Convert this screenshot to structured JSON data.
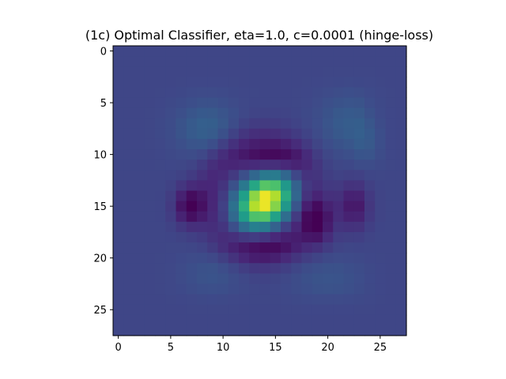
{
  "chart_data": {
    "type": "heatmap",
    "title": "(1c) Optimal Classifier, eta=1.0, c=0.0001 (hinge-loss)",
    "colormap": "viridis",
    "rows": 28,
    "cols": 28,
    "x_ticks": [
      0,
      5,
      10,
      15,
      20,
      25
    ],
    "y_ticks": [
      0,
      5,
      10,
      15,
      20,
      25
    ],
    "x_tick_labels": [
      "0",
      "5",
      "10",
      "15",
      "20",
      "25"
    ],
    "y_tick_labels": [
      "0",
      "5",
      "10",
      "15",
      "20",
      "25"
    ],
    "xlim": [
      -0.5,
      27.5
    ],
    "ylim": [
      27.5,
      -0.5
    ],
    "background_value": 0.21,
    "components": [
      {
        "kind": "positive-blob",
        "center": [
          14.5,
          14.0
        ],
        "sigma": [
          1.5,
          2.0
        ],
        "rotation_deg": -40,
        "amplitude": 0.8
      },
      {
        "kind": "negative-ring",
        "center": [
          14.0,
          13.5
        ],
        "sigma": [
          5.0,
          4.5
        ],
        "amplitude": -0.1
      },
      {
        "kind": "negative-spot",
        "center": [
          15.0,
          6.8
        ],
        "sigma": [
          1.3,
          1.0
        ],
        "amplitude": -0.2
      },
      {
        "kind": "negative-spot",
        "center": [
          16.5,
          19.0
        ],
        "sigma": [
          1.5,
          1.0
        ],
        "amplitude": -0.19
      },
      {
        "kind": "negative-spot",
        "center": [
          15.0,
          22.5
        ],
        "sigma": [
          1.6,
          1.2
        ],
        "amplitude": -0.15
      },
      {
        "kind": "negative-spot",
        "center": [
          10.5,
          14.5
        ],
        "sigma": [
          1.0,
          2.2
        ],
        "amplitude": -0.14
      },
      {
        "kind": "negative-spot",
        "center": [
          19.0,
          14.0
        ],
        "sigma": [
          1.0,
          2.5
        ],
        "amplitude": -0.1
      },
      {
        "kind": "positive-spot",
        "center": [
          7.5,
          8.5
        ],
        "sigma": [
          1.8,
          2.0
        ],
        "amplitude": 0.1
      },
      {
        "kind": "positive-spot",
        "center": [
          7.0,
          22.0
        ],
        "sigma": [
          2.0,
          2.0
        ],
        "amplitude": 0.08
      },
      {
        "kind": "positive-spot",
        "center": [
          9.0,
          24.0
        ],
        "sigma": [
          1.5,
          1.0
        ],
        "amplitude": 0.06
      },
      {
        "kind": "positive-spot",
        "center": [
          21.5,
          9.0
        ],
        "sigma": [
          1.5,
          2.0
        ],
        "amplitude": 0.05
      },
      {
        "kind": "positive-spot",
        "center": [
          22.0,
          20.0
        ],
        "sigma": [
          1.5,
          2.5
        ],
        "amplitude": 0.05
      }
    ],
    "value_range": [
      0,
      1
    ]
  }
}
